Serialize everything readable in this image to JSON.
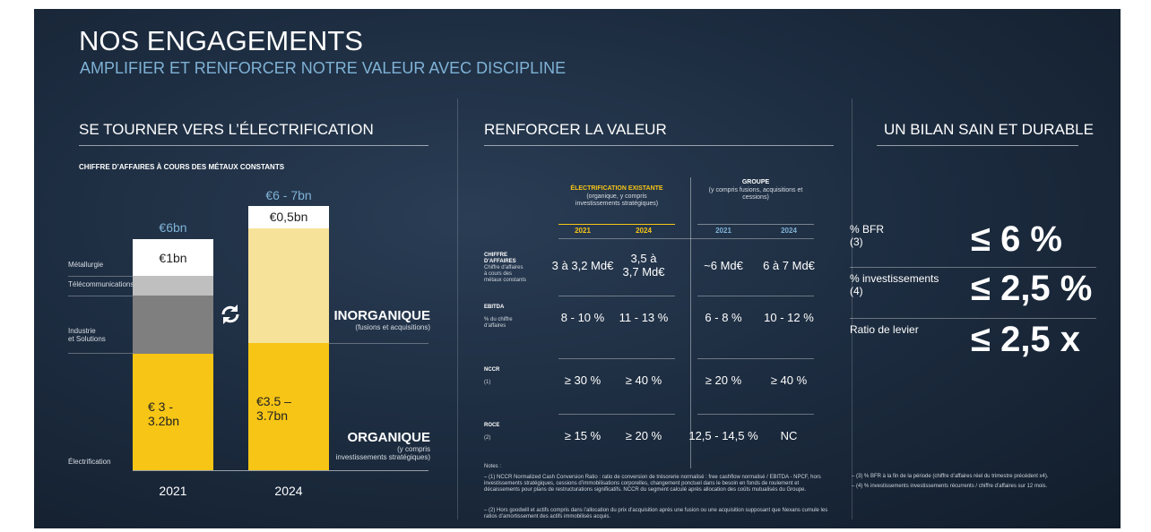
{
  "header": {
    "title": "NOS ENGAGEMENTS",
    "subtitle": "AMPLIFIER ET RENFORCER NOTRE VALEUR AVEC DISCIPLINE"
  },
  "left": {
    "heading": "SE TOURNER VERS L’ÉLECTRIFICATION",
    "chart_title": "CHIFFRE D’AFFAIRES À COURS DES MÉTAUX CONSTANTS",
    "segments": [
      "Métallurgie",
      "Télécommunications",
      "Industrie\net Solutions",
      "Électrification"
    ],
    "bars": [
      {
        "year": "2021",
        "total": "€6bn",
        "top": "€1bn",
        "bottom": "€ 3 -\n3.2bn"
      },
      {
        "year": "2024",
        "total": "€6 - 7bn",
        "top": "€0,5bn",
        "bottom": "€3.5 –\n3.7bn"
      }
    ],
    "inorganic": {
      "label": "INORGANIQUE",
      "note": "(fusions et acquisitions)"
    },
    "organic": {
      "label": "ORGANIQUE",
      "note": "(y compris\ninvestissements stratégiques)"
    }
  },
  "middle": {
    "heading": "RENFORCER LA VALEUR",
    "groups": [
      {
        "title": "ÉLECTRIFICATION EXISTANTE",
        "note": "(organique, y compris\ninvestissements stratégiques)"
      },
      {
        "title": "GROUPE",
        "note": "(y compris fusions, acquisitions et\ncessions)"
      }
    ],
    "years": [
      "2021",
      "2024",
      "2021",
      "2024"
    ],
    "rows": [
      {
        "label": "CHIFFRE\nD’AFFAIRES",
        "note": "Chiffre d’affaires\nà cours des\nmétaux constants",
        "cells": [
          "3 à 3,2 Md€",
          "3,5 à\n3,7 Md€",
          "~6 Md€",
          "6 à 7 Md€"
        ]
      },
      {
        "label": "EBITDA",
        "note": "% du chiffre\nd’affaires",
        "cells": [
          "8 - 10 %",
          "11 - 13 %",
          "6 - 8 %",
          "10 - 12 %"
        ]
      },
      {
        "label": "NCCR",
        "note": "(1)",
        "cells": [
          "≥ 30 %",
          "≥ 40 %",
          "≥ 20 %",
          "≥ 40 %"
        ]
      },
      {
        "label": "ROCE",
        "note": "(2)",
        "cells": [
          "≥ 15 %",
          "≥ 20 %",
          "12,5 - 14,5 %",
          "NC"
        ]
      }
    ],
    "notes_title": "Notes :",
    "notes": [
      "–  (1) NCCR Normalized Cash Conversion Ratio : ratio de conversion de trésorerie normalisé : free cashflow normalisé / EBITDA - NPCF, hors investissements stratégiques, cessions d’immobilisations corporelles, changement ponctuel dans le besoin en fonds de roulement et décaissements pour plans de restructurations significatifs. NCCR du segment calculé après allocation des coûts mutualisés du Groupe.",
      "–  (2) Hors goodwill et actifs compris dans l’allocation du prix d’acquisition après une fusion ou une acquisition supposant que Nexans cumule les ratios d’amortissement des actifs immobilisés acquis."
    ]
  },
  "right": {
    "heading": "UN BILAN SAIN ET DURABLE",
    "rows": [
      {
        "label": "% BFR\n(3)",
        "value": "≤ 6 %"
      },
      {
        "label": "% investissements\n(4)",
        "value": "≤ 2,5 %"
      },
      {
        "label": "Ratio de levier",
        "value": "≤ 2,5 x"
      }
    ],
    "footnotes": [
      "–  (3) % BFR à la fin de la période (chiffre d’affaires réel du trimestre précédent x4).",
      "–  (4) % investissements investissements récurrents / chiffre d’affaires sur 12 mois."
    ]
  }
}
